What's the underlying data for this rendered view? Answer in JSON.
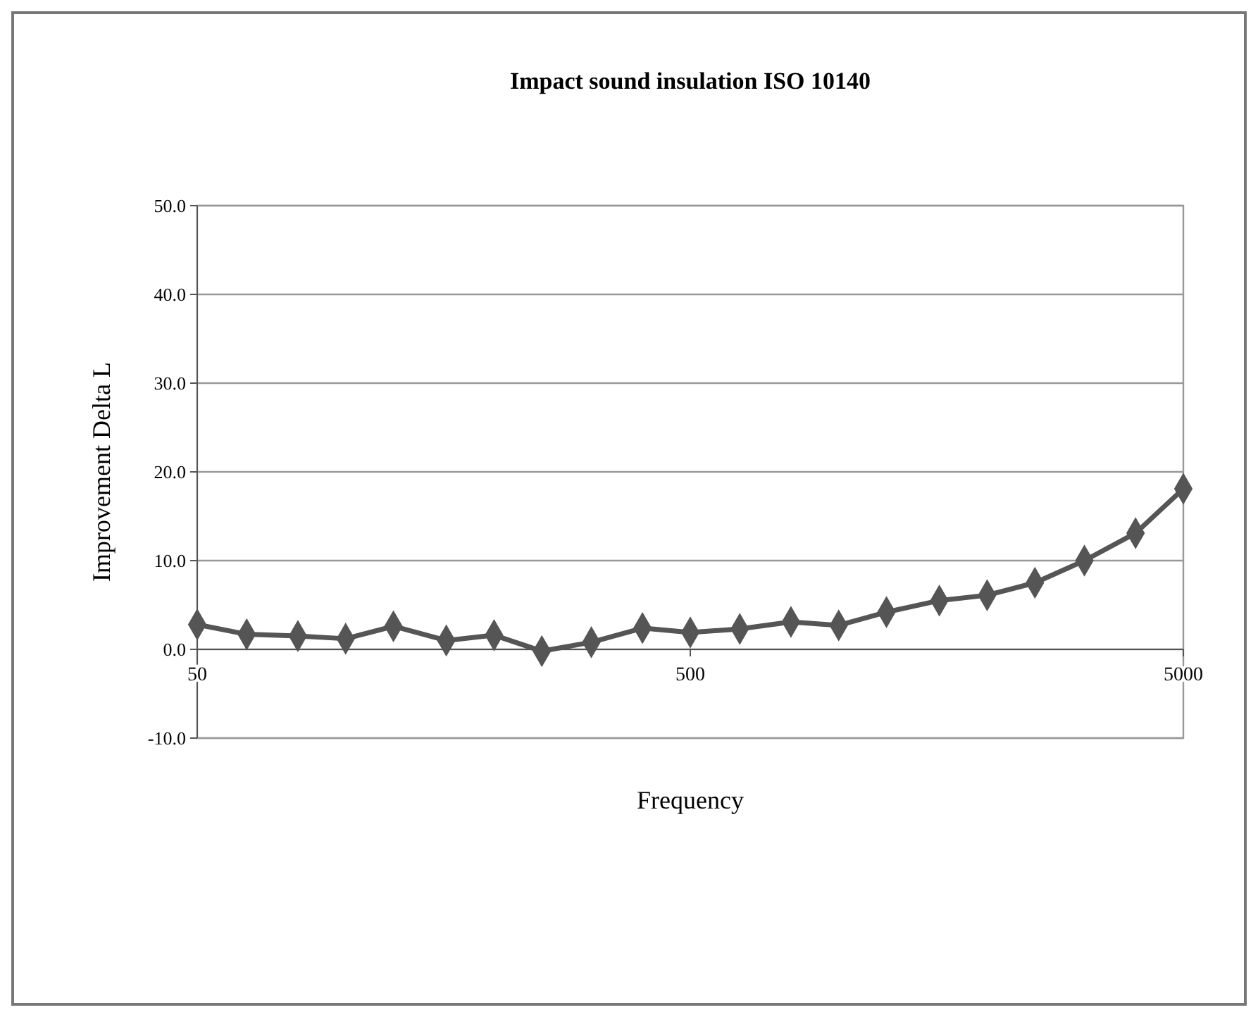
{
  "chart_data": {
    "type": "line",
    "title": "Impact sound insulation  ISO 10140",
    "xlabel": "Frequency",
    "ylabel": "Improvement Delta L",
    "log": "x",
    "x": [
      50,
      63,
      80,
      100,
      125,
      160,
      200,
      250,
      315,
      400,
      500,
      630,
      800,
      1000,
      1250,
      1600,
      2000,
      2500,
      3150,
      4000,
      5000
    ],
    "series": [
      {
        "color": "#555555",
        "values": [
          2.8,
          1.7,
          1.5,
          1.2,
          2.6,
          1.0,
          1.6,
          -0.2,
          0.8,
          2.4,
          1.9,
          2.3,
          3.1,
          2.7,
          4.2,
          5.5,
          6.1,
          7.5,
          10.0,
          13.1,
          18.1
        ]
      }
    ],
    "xlim": [
      50,
      5000
    ],
    "xticks": [
      50,
      500,
      5000
    ],
    "ylim": [
      -10,
      50
    ],
    "yticks": [
      {
        "value": -10,
        "label": "-10.0"
      },
      {
        "value": 0,
        "label": "0.0"
      },
      {
        "value": 10,
        "label": "10.0"
      },
      {
        "value": 20,
        "label": "20.0"
      },
      {
        "value": 30,
        "label": "30.0"
      },
      {
        "value": 40,
        "label": "40.0"
      },
      {
        "value": 50,
        "label": "50.0"
      }
    ],
    "grid": "y",
    "marker": "diamond",
    "line_style": "solid"
  }
}
